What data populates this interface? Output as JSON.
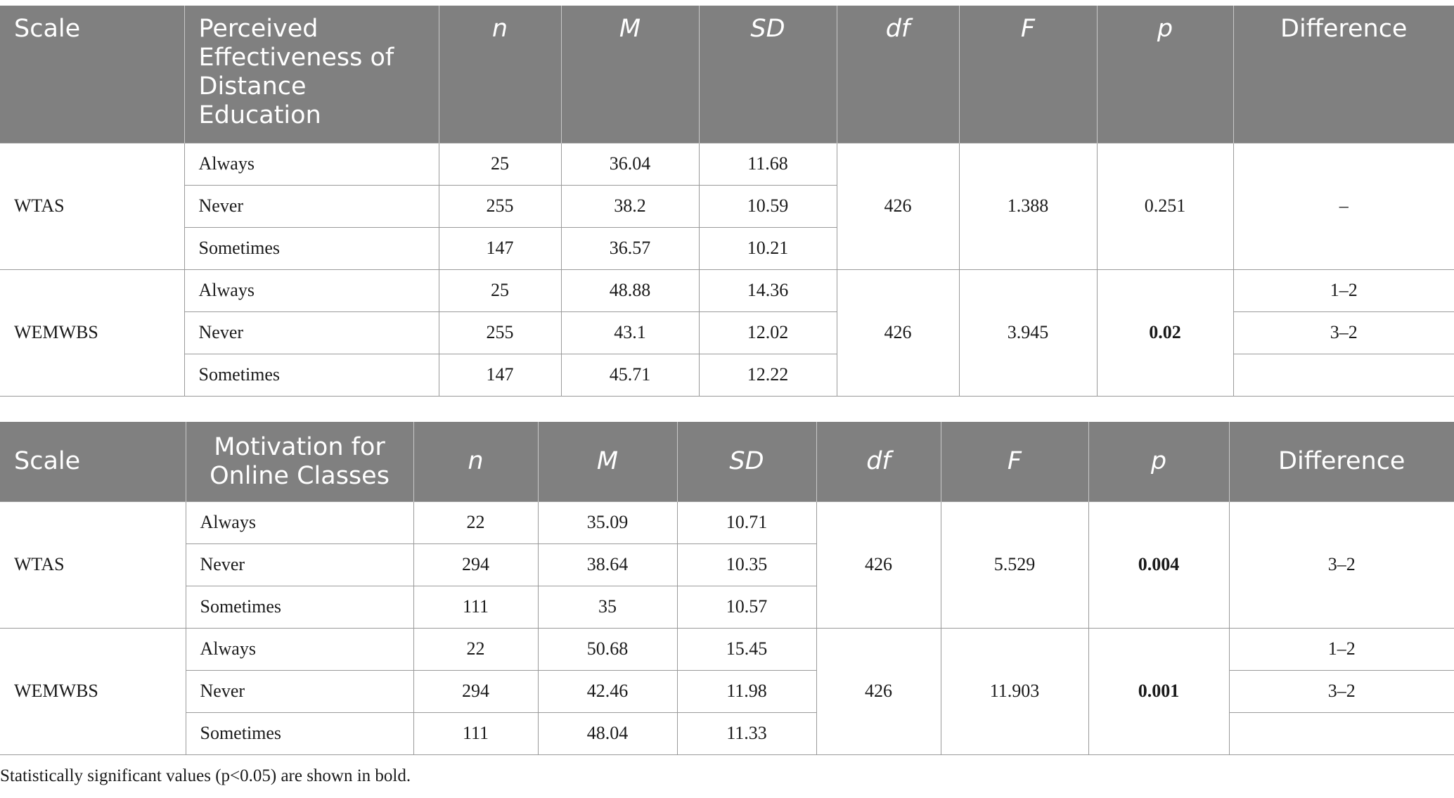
{
  "table1": {
    "headers": [
      "Scale",
      "Perceived Effectiveness of Distance Education",
      "n",
      "M",
      "SD",
      "df",
      "F",
      "p",
      "Difference"
    ],
    "groups": [
      {
        "scale": "WTAS",
        "df": "426",
        "F": "1.388",
        "p": "0.251",
        "differences": [
          "–"
        ],
        "rows": [
          {
            "category": "Always",
            "n": "25",
            "M": "36.04",
            "SD": "11.68"
          },
          {
            "category": "Never",
            "n": "255",
            "M": "38.2",
            "SD": "10.59"
          },
          {
            "category": "Sometimes",
            "n": "147",
            "M": "36.57",
            "SD": "10.21"
          }
        ]
      },
      {
        "scale": "WEMWBS",
        "df": "426",
        "F": "3.945",
        "p": "0.02",
        "differences": [
          "1–2",
          "3–2",
          ""
        ],
        "rows": [
          {
            "category": "Always",
            "n": "25",
            "M": "48.88",
            "SD": "14.36"
          },
          {
            "category": "Never",
            "n": "255",
            "M": "43.1",
            "SD": "12.02"
          },
          {
            "category": "Sometimes",
            "n": "147",
            "M": "45.71",
            "SD": "12.22"
          }
        ]
      }
    ]
  },
  "table2": {
    "headers": [
      "Scale",
      "Motivation for Online Classes",
      "n",
      "M",
      "SD",
      "df",
      "F",
      "p",
      "Difference"
    ],
    "groups": [
      {
        "scale": "WTAS",
        "df": "426",
        "F": "5.529",
        "p": "0.004",
        "differences": [
          "3–2"
        ],
        "rows": [
          {
            "category": "Always",
            "n": "22",
            "M": "35.09",
            "SD": "10.71"
          },
          {
            "category": "Never",
            "n": "294",
            "M": "38.64",
            "SD": "10.35"
          },
          {
            "category": "Sometimes",
            "n": "111",
            "M": "35",
            "SD": "10.57"
          }
        ]
      },
      {
        "scale": "WEMWBS",
        "df": "426",
        "F": "11.903",
        "p": "0.001",
        "differences": [
          "1–2",
          "3–2",
          ""
        ],
        "rows": [
          {
            "category": "Always",
            "n": "22",
            "M": "50.68",
            "SD": "15.45"
          },
          {
            "category": "Never",
            "n": "294",
            "M": "42.46",
            "SD": "11.98"
          },
          {
            "category": "Sometimes",
            "n": "111",
            "M": "48.04",
            "SD": "11.33"
          }
        ]
      }
    ]
  },
  "footnote": "Statistically significant values (p<0.05) are shown in bold."
}
